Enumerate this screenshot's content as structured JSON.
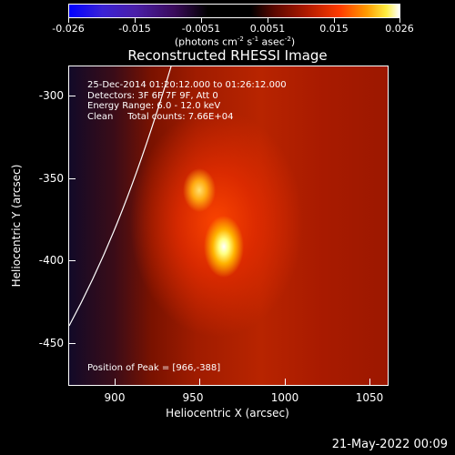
{
  "colorbar": {
    "tick_labels": [
      "-0.026",
      "-0.015",
      "-0.0051",
      "0.0051",
      "0.015",
      "0.026"
    ],
    "units": "(photons cm",
    "units_exp1": "-2",
    "units_mid": " s",
    "units_exp2": "-1",
    "units_mid2": " asec",
    "units_exp3": "-2",
    "units_end": ")"
  },
  "title": "Reconstructed RHESSI Image",
  "info": {
    "line1": "25-Dec-2014 01:20:12.000 to 01:26:12.000",
    "line2": "Detectors: 3F 6F 7F 9F, Att 0",
    "line3": "Energy Range: 6.0 - 12.0 keV",
    "line4": "Clean     Total counts: 7.66E+04"
  },
  "peak_text": "Position of Peak = [966,-388]",
  "axes": {
    "xlabel": "Heliocentric X (arcsec)",
    "ylabel": "Heliocentric Y (arcsec)",
    "xticks": [
      "900",
      "950",
      "1000",
      "1050"
    ],
    "yticks": [
      "-300",
      "-350",
      "-400",
      "-450"
    ]
  },
  "datestamp": "21-May-2022 00:09"
}
